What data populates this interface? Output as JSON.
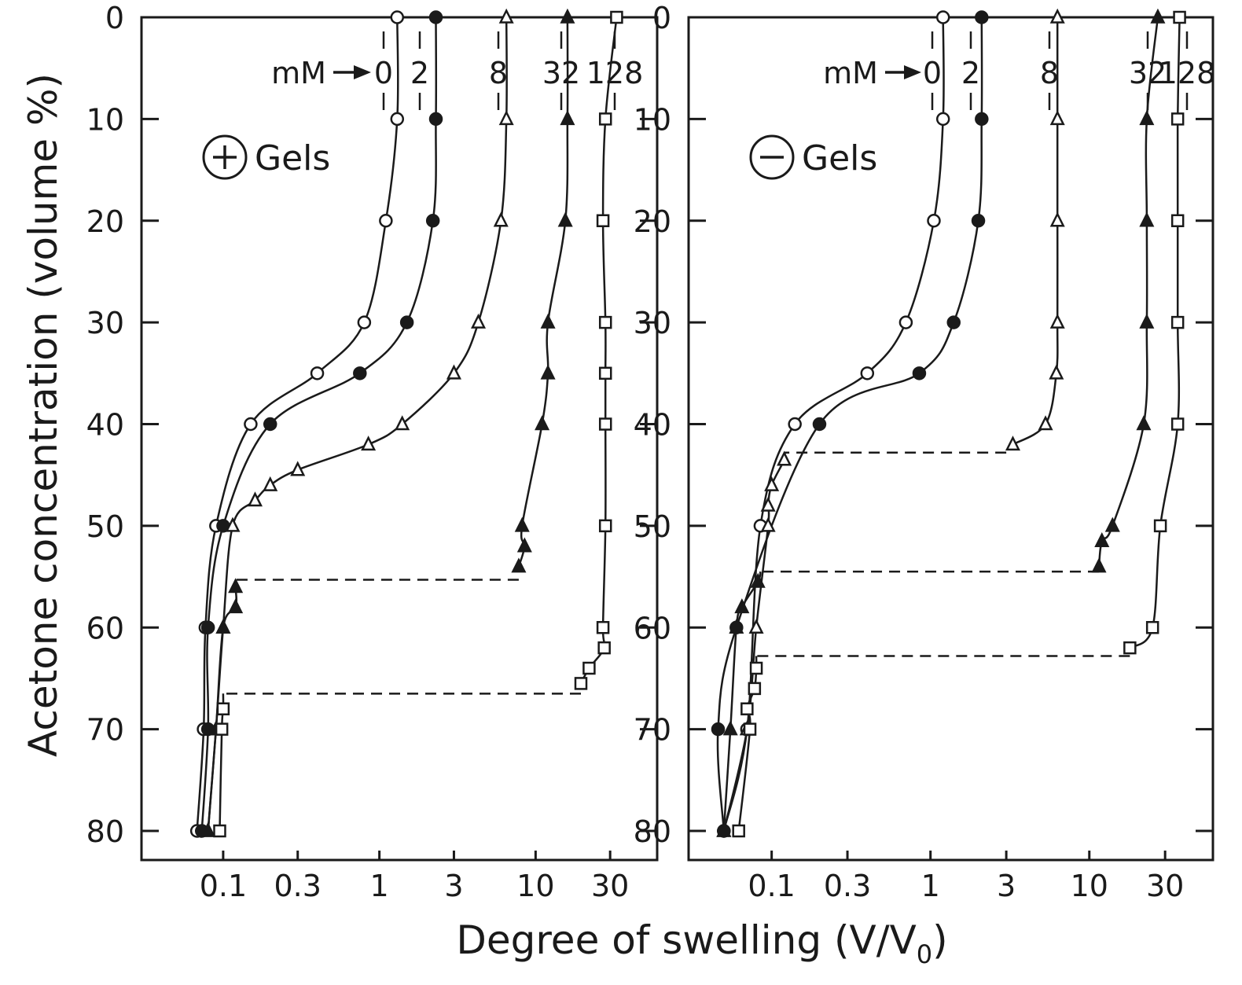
{
  "figure": {
    "xlabel": "Degree of swelling (V/V",
    "xlabel_sub": "0",
    "xlabel_close": ")",
    "ylabel": "Acetone concentration (volume %)",
    "mm_label": "mM"
  },
  "chart_data": [
    {
      "type": "scatter",
      "panel": "left",
      "title": "Gels",
      "sign": "+",
      "xscale": "log",
      "xlim": [
        0.03,
        60
      ],
      "ylim": [
        0,
        83
      ],
      "y_inverted": true,
      "xticks": [
        0.1,
        0.3,
        1,
        3,
        10,
        30
      ],
      "xtick_labels": [
        "0.1",
        "0.3",
        "1",
        "3",
        "10",
        "30"
      ],
      "yticks": [
        0,
        10,
        20,
        30,
        40,
        50,
        60,
        70,
        80
      ],
      "ytick_labels": [
        "0",
        "10",
        "20",
        "30",
        "40",
        "50",
        "60",
        "70",
        "80"
      ],
      "series": [
        {
          "name": "0",
          "marker": "circle-open",
          "points": [
            [
              1.3,
              0
            ],
            [
              1.3,
              10
            ],
            [
              1.1,
              20
            ],
            [
              0.8,
              30
            ],
            [
              0.4,
              35
            ],
            [
              0.15,
              40
            ],
            [
              0.09,
              50
            ],
            [
              0.077,
              60
            ],
            [
              0.075,
              70
            ],
            [
              0.068,
              80
            ]
          ],
          "transition": null
        },
        {
          "name": "2",
          "marker": "circle-filled",
          "points": [
            [
              2.3,
              0
            ],
            [
              2.3,
              10
            ],
            [
              2.2,
              20
            ],
            [
              1.5,
              30
            ],
            [
              0.75,
              35
            ],
            [
              0.2,
              40
            ],
            [
              0.1,
              50
            ],
            [
              0.08,
              60
            ],
            [
              0.08,
              70
            ],
            [
              0.073,
              80
            ]
          ],
          "transition": null
        },
        {
          "name": "8",
          "marker": "triangle-open",
          "points": [
            [
              6.5,
              0
            ],
            [
              6.5,
              10
            ],
            [
              6.0,
              20
            ],
            [
              4.3,
              30
            ],
            [
              3.0,
              35
            ],
            [
              1.4,
              40
            ],
            [
              0.85,
              42
            ],
            [
              0.3,
              44.5
            ],
            [
              0.2,
              46
            ],
            [
              0.16,
              47.5
            ],
            [
              0.115,
              50
            ],
            [
              0.1,
              60
            ],
            [
              0.09,
              70
            ],
            [
              0.08,
              80
            ]
          ],
          "transition": null
        },
        {
          "name": "32",
          "marker": "triangle-filled",
          "points": [
            [
              16,
              0
            ],
            [
              16,
              10
            ],
            [
              15.5,
              20
            ],
            [
              12,
              30
            ],
            [
              12,
              35
            ],
            [
              11,
              40
            ],
            [
              8.2,
              50
            ],
            [
              8.5,
              52
            ],
            [
              7.8,
              54
            ],
            [
              0.12,
              56
            ],
            [
              0.12,
              58
            ],
            [
              0.1,
              60
            ],
            [
              0.09,
              70
            ],
            [
              0.08,
              80
            ]
          ],
          "transition": {
            "y": 55.3,
            "x_from": 7.8,
            "x_to": 0.12
          }
        },
        {
          "name": "128",
          "marker": "square-open",
          "points": [
            [
              33,
              0
            ],
            [
              28,
              10
            ],
            [
              27,
              20
            ],
            [
              28,
              30
            ],
            [
              28,
              35
            ],
            [
              28,
              40
            ],
            [
              28,
              50
            ],
            [
              27,
              60
            ],
            [
              27.5,
              62
            ],
            [
              22,
              64
            ],
            [
              19.5,
              65.5
            ],
            [
              0.1,
              68
            ],
            [
              0.098,
              70
            ],
            [
              0.095,
              80
            ]
          ],
          "transition": {
            "y": 66.5,
            "x_from": 19.5,
            "x_to": 0.1
          }
        }
      ]
    },
    {
      "type": "scatter",
      "panel": "right",
      "title": "Gels",
      "sign": "−",
      "xscale": "log",
      "xlim": [
        0.03,
        60
      ],
      "ylim": [
        0,
        83
      ],
      "y_inverted": true,
      "xticks": [
        0.1,
        0.3,
        1,
        3,
        10,
        30
      ],
      "xtick_labels": [
        "0.1",
        "0.3",
        "1",
        "3",
        "10",
        "30"
      ],
      "yticks": [
        0,
        10,
        20,
        30,
        40,
        50,
        60,
        70,
        80
      ],
      "ytick_labels": [
        "0",
        "10",
        "20",
        "30",
        "40",
        "50",
        "60",
        "70",
        "80"
      ],
      "series": [
        {
          "name": "0",
          "marker": "circle-open",
          "points": [
            [
              1.2,
              0
            ],
            [
              1.2,
              10
            ],
            [
              1.05,
              20
            ],
            [
              0.7,
              30
            ],
            [
              0.4,
              35
            ],
            [
              0.14,
              40
            ],
            [
              0.085,
              50
            ],
            [
              0.07,
              70
            ],
            [
              0.05,
              80
            ]
          ],
          "transition": null
        },
        {
          "name": "2",
          "marker": "circle-filled",
          "points": [
            [
              2.1,
              0
            ],
            [
              2.1,
              10
            ],
            [
              2.0,
              20
            ],
            [
              1.4,
              30
            ],
            [
              0.85,
              35
            ],
            [
              0.2,
              40
            ],
            [
              0.06,
              60
            ],
            [
              0.046,
              70
            ],
            [
              0.05,
              80
            ]
          ],
          "transition": null
        },
        {
          "name": "8",
          "marker": "triangle-open",
          "points": [
            [
              6.3,
              0
            ],
            [
              6.3,
              10
            ],
            [
              6.3,
              20
            ],
            [
              6.3,
              30
            ],
            [
              6.2,
              35
            ],
            [
              5.3,
              40
            ],
            [
              3.3,
              42
            ],
            [
              0.12,
              43.5
            ],
            [
              0.1,
              46
            ],
            [
              0.095,
              48
            ],
            [
              0.095,
              50
            ],
            [
              0.08,
              60
            ],
            [
              0.07,
              70
            ],
            [
              0.05,
              80
            ]
          ],
          "transition": {
            "y": 42.8,
            "x_from": 3.0,
            "x_to": 0.12
          }
        },
        {
          "name": "32",
          "marker": "triangle-filled",
          "points": [
            [
              27,
              0
            ],
            [
              23,
              10
            ],
            [
              23,
              20
            ],
            [
              23,
              30
            ],
            [
              22,
              40
            ],
            [
              14,
              50
            ],
            [
              12,
              51.5
            ],
            [
              11.5,
              54
            ],
            [
              0.082,
              55.5
            ],
            [
              0.065,
              58
            ],
            [
              0.06,
              60
            ],
            [
              0.055,
              70
            ],
            [
              0.05,
              80
            ]
          ],
          "transition": {
            "y": 54.5,
            "x_from": 11.5,
            "x_to": 0.085
          }
        },
        {
          "name": "128",
          "marker": "square-open",
          "points": [
            [
              37,
              0
            ],
            [
              36,
              10
            ],
            [
              36,
              20
            ],
            [
              36,
              30
            ],
            [
              36,
              40
            ],
            [
              28,
              50
            ],
            [
              25,
              60
            ],
            [
              18,
              62
            ],
            [
              0.08,
              64
            ],
            [
              0.078,
              66
            ],
            [
              0.07,
              68
            ],
            [
              0.073,
              70
            ],
            [
              0.062,
              80
            ]
          ],
          "transition": {
            "y": 62.8,
            "x_from": 18,
            "x_to": 0.08
          }
        }
      ]
    }
  ]
}
